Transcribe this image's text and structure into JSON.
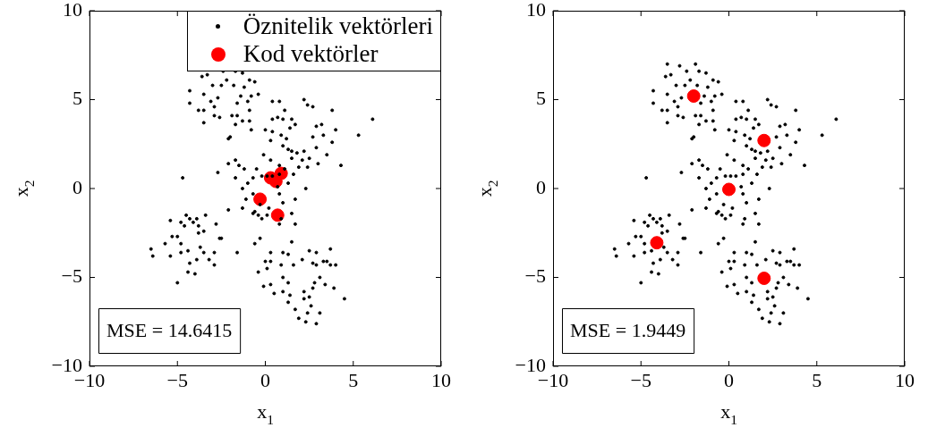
{
  "chart_data": [
    {
      "type": "scatter",
      "xlabel": "x$_{1}$",
      "ylabel": "x$_{2}$",
      "xlim": [
        -10,
        10
      ],
      "ylim": [
        -10,
        10
      ],
      "xticks": [
        -10,
        -5,
        0,
        5,
        10
      ],
      "yticks": [
        -10,
        -5,
        0,
        5,
        10
      ],
      "grid": false,
      "legend": "top right",
      "marker": "circle",
      "annotations": [
        "MSE = 14.6415"
      ],
      "series": [
        {
          "name": "Öznitelik vektörleri",
          "color": "#000000",
          "x": [
            null,
            null,
            null,
            -1.7,
            -3.6,
            -3.3,
            -2.4,
            -1.3,
            -0.9,
            -0.6,
            -3.0,
            -2.2,
            -4.3,
            -3.5,
            -2.7,
            -1.4,
            -0.8,
            -0.4,
            -4.3,
            -3.1,
            -2.9,
            -3.8,
            -3.5,
            -1.6,
            -1.0,
            -0.9,
            -2.9,
            -2.6,
            -1.9,
            -1.6,
            -1.3,
            -0.9,
            -3.5,
            -1.7,
            -0.8,
            -2.0,
            -2.1,
            -1.8,
            -1.2,
            -2.5,
            0.4,
            0.8,
            2.2,
            2.4,
            2.7,
            3.8,
            6.1,
            1.1,
            0.4,
            0.7,
            1.0,
            1.5,
            0.0,
            0.4,
            0.9,
            1.4,
            1.7,
            2.9,
            3.2,
            4.0,
            5.3,
            1.2,
            2.7,
            3.3,
            3.8,
            1.0,
            1.3,
            1.5,
            1.8,
            2.2,
            2.9,
            3.5,
            1.5,
            2.1,
            2.5,
            1.9,
            2.4,
            3.0,
            4.3,
            0.3,
            -2.1,
            -1.7,
            -1.5,
            -0.1,
            0.3,
            0.8,
            1.1,
            -2.7,
            -1.2,
            -0.5,
            0.1,
            0.4,
            0.8,
            1.6,
            -4.7,
            -1.7,
            -1.0,
            -0.7,
            -0.2,
            1.3,
            -1.3,
            -0.7,
            0.7,
            0.8,
            2.3,
            -1.1,
            -0.3,
            1.0,
            1.7,
            -2.1,
            -1.3,
            0.2,
            -0.6,
            -0.7,
            -0.4,
            0.1,
            -0.2,
            0.9,
            0.8,
            1.7,
            1.5,
            -5.4,
            -4.5,
            -3.9,
            -3.4,
            -4.8,
            -4.3,
            -4.1,
            -4.6,
            -3.8,
            -2.8,
            -3.5,
            -5.3,
            -5.0,
            -4.8,
            -5.7,
            -6.5,
            -6.4,
            -5.4,
            -4.8,
            -4.4,
            -3.8,
            -2.6,
            -2.5,
            -3.7,
            -3.5,
            -3.2,
            -2.9,
            -2.9,
            -3.9,
            -4.3,
            -4.4,
            -4.0,
            -5.0,
            -1.6,
            -0.6,
            -0.3,
            1.5,
            0.3,
            1.0,
            1.3,
            2.5,
            2.9,
            3.7,
            0.0,
            0.3,
            0.1,
            -0.4,
            0.9,
            1.6,
            2.1,
            2.7,
            2.9,
            3.3,
            3.5,
            3.7,
            4.0,
            1.0,
            1.3,
            2.8,
            3.1,
            3.4,
            3.9,
            -0.1,
            0.3,
            1.0,
            0.5,
            1.4,
            2.2,
            2.5,
            2.7,
            4.5,
            1.3,
            2.2,
            2.6,
            1.7,
            2.4,
            3.1,
            1.9,
            2.9,
            2.3
          ],
          "values": [
            null,
            null,
            null,
            6.6,
            6.3,
            6.4,
            6.6,
            6.5,
            6.1,
            6.0,
            5.8,
            6.1,
            5.5,
            5.3,
            5.1,
            5.2,
            5.2,
            5.3,
            4.8,
            4.9,
            4.6,
            4.4,
            4.4,
            4.8,
            4.9,
            4.4,
            4.1,
            4.0,
            4.1,
            4.1,
            3.8,
            3.8,
            3.7,
            3.6,
            3.3,
            2.9,
            2.8,
            5.8,
            5.7,
            5.8,
            4.9,
            4.9,
            5.0,
            4.7,
            4.6,
            4.4,
            3.9,
            4.4,
            3.9,
            4.0,
            3.9,
            3.9,
            3.3,
            3.2,
            3.0,
            3.4,
            3.6,
            3.5,
            3.6,
            3.3,
            3.0,
            2.8,
            2.9,
            3.0,
            2.6,
            2.4,
            2.2,
            2.1,
            2.0,
            2.1,
            2.3,
            1.9,
            1.7,
            1.6,
            1.7,
            1.2,
            1.2,
            1.4,
            1.3,
            2.7,
            1.4,
            1.6,
            1.3,
            1.9,
            1.6,
            1.3,
            1.1,
            0.9,
            1.1,
            1.1,
            0.7,
            0.7,
            0.8,
            0.8,
            0.6,
            0.6,
            0.3,
            0.6,
            0.7,
            0.3,
            0.0,
            -0.3,
            0.1,
            -0.3,
            0.0,
            -0.6,
            -0.9,
            -0.8,
            -0.6,
            -1.2,
            -1.1,
            -1.1,
            -1.3,
            -1.4,
            -1.5,
            -1.5,
            -1.7,
            -1.7,
            -2.0,
            -2.0,
            -1.4,
            -1.8,
            -1.5,
            -1.7,
            -1.5,
            -1.9,
            -1.7,
            -1.9,
            -2.1,
            -2.1,
            -2.0,
            -2.4,
            -2.7,
            -2.7,
            -3.1,
            -3.1,
            -3.4,
            -3.8,
            -3.8,
            -3.6,
            -3.5,
            -2.5,
            -2.8,
            -2.8,
            -3.3,
            -3.6,
            -4.0,
            -3.6,
            -4.3,
            -4.0,
            -4.2,
            -4.7,
            -4.8,
            -5.3,
            -3.6,
            -3.1,
            -2.8,
            -3.0,
            -3.6,
            -3.6,
            -3.7,
            -3.5,
            -3.6,
            -3.4,
            -4.1,
            -4.1,
            -4.5,
            -4.7,
            -4.3,
            -4.3,
            -4.0,
            -4.2,
            -4.3,
            -4.1,
            -4.1,
            -4.3,
            -4.3,
            -5.0,
            -5.3,
            -5.3,
            -5.0,
            -5.4,
            -5.6,
            -5.5,
            -5.4,
            -5.8,
            -5.9,
            -6.0,
            -5.8,
            -6.1,
            -5.6,
            -6.2,
            -6.4,
            -6.2,
            -6.6,
            -6.8,
            -7.0,
            -7.0,
            -7.3,
            -7.6,
            -7.5
          ]
        },
        {
          "name": "Kod vektörler",
          "color": "#ff0000",
          "x": [
            -0.3,
            0.7,
            0.3,
            0.9,
            0.6
          ],
          "values": [
            -0.6,
            -1.5,
            0.6,
            0.85,
            0.4
          ]
        }
      ]
    },
    {
      "type": "scatter",
      "xlabel": "x$_{1}$",
      "ylabel": "x$_{2}$",
      "xlim": [
        -10,
        10
      ],
      "ylim": [
        -10,
        10
      ],
      "xticks": [
        -10,
        -5,
        0,
        5,
        10
      ],
      "yticks": [
        -10,
        -5,
        0,
        5,
        10
      ],
      "grid": false,
      "marker": "circle",
      "annotations": [
        "MSE = 1.9449"
      ],
      "series": [
        {
          "color": "#000000",
          "x": [
            -3.5,
            -2.8,
            -1.9,
            -1.7,
            -3.6,
            -3.3,
            -2.4,
            -1.3,
            -0.9,
            -0.6,
            -3.0,
            -2.2,
            -4.3,
            -3.5,
            -2.7,
            -1.4,
            -0.8,
            -0.4,
            -4.3,
            -3.1,
            -2.9,
            -3.8,
            -3.5,
            -1.6,
            -1.0,
            -0.9,
            -2.9,
            -2.6,
            -1.9,
            -1.6,
            -1.3,
            -0.9,
            -3.5,
            -1.7,
            -0.8,
            -2.0,
            -2.1,
            -1.8,
            -1.2,
            -2.5,
            0.4,
            0.8,
            2.2,
            2.4,
            2.7,
            3.8,
            6.1,
            1.1,
            0.4,
            0.7,
            1.0,
            1.5,
            0.0,
            0.4,
            0.9,
            1.4,
            1.7,
            2.9,
            3.2,
            4.0,
            5.3,
            1.2,
            2.7,
            3.3,
            3.8,
            1.0,
            1.3,
            1.5,
            1.8,
            2.2,
            2.9,
            3.5,
            1.5,
            2.1,
            2.5,
            1.9,
            2.4,
            3.0,
            4.3,
            0.3,
            -2.1,
            -1.7,
            -1.5,
            -0.1,
            0.3,
            0.8,
            1.1,
            -2.7,
            -1.2,
            -0.5,
            0.1,
            0.4,
            0.8,
            1.6,
            -4.7,
            -1.7,
            -1.0,
            -0.7,
            -0.2,
            1.3,
            -1.3,
            -0.7,
            0.7,
            0.8,
            2.3,
            -1.1,
            -0.3,
            1.0,
            1.7,
            -2.1,
            -1.3,
            0.2,
            -0.6,
            -0.7,
            -0.4,
            0.1,
            -0.2,
            0.9,
            0.8,
            1.7,
            1.5,
            -5.4,
            -4.5,
            -3.9,
            -3.4,
            -4.8,
            -4.3,
            -4.1,
            -4.6,
            -3.8,
            -2.8,
            -3.5,
            -5.3,
            -5.0,
            -4.8,
            -5.7,
            -6.5,
            -6.4,
            -5.4,
            -4.8,
            -4.4,
            -3.8,
            -2.6,
            -2.5,
            -3.7,
            -3.5,
            -3.2,
            -2.9,
            -2.9,
            -3.9,
            -4.3,
            -4.4,
            -4.0,
            -5.0,
            -1.6,
            -0.6,
            -0.3,
            1.5,
            0.3,
            1.0,
            1.3,
            2.5,
            2.9,
            3.7,
            0.0,
            0.3,
            0.1,
            -0.4,
            0.9,
            1.6,
            2.1,
            2.7,
            2.9,
            3.3,
            3.5,
            3.7,
            4.0,
            1.0,
            1.3,
            2.8,
            3.1,
            3.4,
            3.9,
            -0.1,
            0.3,
            1.0,
            0.5,
            1.4,
            2.2,
            2.5,
            2.7,
            4.5,
            1.3,
            2.2,
            2.6,
            1.7,
            2.4,
            3.1,
            1.9,
            2.9,
            2.3
          ],
          "values": [
            7.0,
            6.9,
            7.0,
            6.6,
            6.3,
            6.4,
            6.6,
            6.5,
            6.1,
            6.0,
            5.8,
            6.1,
            5.5,
            5.3,
            5.1,
            5.2,
            5.2,
            5.3,
            4.8,
            4.9,
            4.6,
            4.4,
            4.4,
            4.8,
            4.9,
            4.4,
            4.1,
            4.0,
            4.1,
            4.1,
            3.8,
            3.8,
            3.7,
            3.6,
            3.3,
            2.9,
            2.8,
            5.8,
            5.7,
            5.8,
            4.9,
            4.9,
            5.0,
            4.7,
            4.6,
            4.4,
            3.9,
            4.4,
            3.9,
            4.0,
            3.9,
            3.9,
            3.3,
            3.2,
            3.0,
            3.4,
            3.6,
            3.5,
            3.6,
            3.3,
            3.0,
            2.8,
            2.9,
            3.0,
            2.6,
            2.4,
            2.2,
            2.1,
            2.0,
            2.1,
            2.3,
            1.9,
            1.7,
            1.6,
            1.7,
            1.2,
            1.2,
            1.4,
            1.3,
            2.7,
            1.4,
            1.6,
            1.3,
            1.9,
            1.6,
            1.3,
            1.1,
            0.9,
            1.1,
            1.1,
            0.7,
            0.7,
            0.8,
            0.8,
            0.6,
            0.6,
            0.3,
            0.6,
            0.7,
            0.3,
            0.0,
            -0.3,
            0.1,
            -0.3,
            0.0,
            -0.6,
            -0.9,
            -0.8,
            -0.6,
            -1.2,
            -1.1,
            -1.1,
            -1.3,
            -1.4,
            -1.5,
            -1.5,
            -1.7,
            -1.7,
            -2.0,
            -2.0,
            -1.4,
            -1.8,
            -1.5,
            -1.7,
            -1.5,
            -1.9,
            -1.7,
            -1.9,
            -2.1,
            -2.1,
            -2.0,
            -2.4,
            -2.7,
            -2.7,
            -3.1,
            -3.1,
            -3.4,
            -3.8,
            -3.8,
            -3.6,
            -3.5,
            -2.5,
            -2.8,
            -2.8,
            -3.3,
            -3.6,
            -4.0,
            -3.6,
            -4.3,
            -4.0,
            -4.2,
            -4.7,
            -4.8,
            -5.3,
            -3.6,
            -3.1,
            -2.8,
            -3.0,
            -3.6,
            -3.6,
            -3.7,
            -3.5,
            -3.6,
            -3.4,
            -4.1,
            -4.1,
            -4.5,
            -4.7,
            -4.3,
            -4.3,
            -4.0,
            -4.2,
            -4.3,
            -4.1,
            -4.1,
            -4.3,
            -4.3,
            -5.0,
            -5.3,
            -5.3,
            -5.0,
            -5.4,
            -5.6,
            -5.5,
            -5.4,
            -5.8,
            -5.9,
            -6.0,
            -5.8,
            -6.1,
            -5.6,
            -6.2,
            -6.4,
            -6.2,
            -6.6,
            -6.8,
            -7.0,
            -7.0,
            -7.3,
            -7.6,
            -7.5
          ]
        },
        {
          "color": "#ff0000",
          "x": [
            -2.0,
            2.0,
            0.0,
            -4.1,
            2.0
          ],
          "values": [
            5.2,
            2.7,
            -0.05,
            -3.05,
            -5.05
          ]
        }
      ]
    }
  ]
}
